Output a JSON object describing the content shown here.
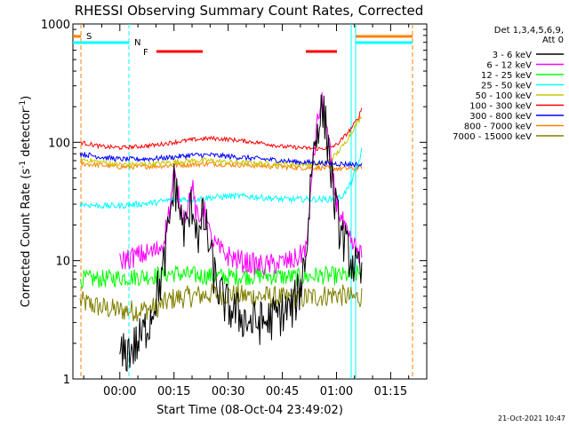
{
  "chart_data": {
    "type": "line",
    "title": "RHESSI Observing Summary Count Rates, Corrected",
    "xlabel": "Start Time (08-Oct-04 23:49:02)",
    "ylabel": "Corrected Count Rate (s",
    "ylabel_sup1": "-1",
    "ylabel_mid": " detector",
    "ylabel_sup2": "-1",
    "ylabel_end": ")",
    "yscale": "log",
    "ylim": [
      1,
      1000
    ],
    "xlim_minutes": [
      -13,
      85
    ],
    "x_ticks": [
      {
        "label": "00:00",
        "minute": 0
      },
      {
        "label": "00:15",
        "minute": 15
      },
      {
        "label": "00:30",
        "minute": 30
      },
      {
        "label": "00:45",
        "minute": 45
      },
      {
        "label": "01:00",
        "minute": 60
      },
      {
        "label": "01:15",
        "minute": 75
      }
    ],
    "y_ticks": [
      {
        "label": "1",
        "value": 1
      },
      {
        "label": "10",
        "value": 10
      },
      {
        "label": "100",
        "value": 100
      },
      {
        "label": "1000",
        "value": 1000
      }
    ],
    "legend_header": [
      "Det 1,3,4,5,6,9,",
      "Att 0"
    ],
    "legend_position": "right",
    "series": [
      {
        "name": "3 - 6 keV",
        "color": "#000000",
        "x": [
          0,
          5,
          8,
          12,
          14,
          15,
          16,
          17,
          18,
          19,
          20,
          21,
          22,
          23,
          24,
          25,
          26,
          27,
          28,
          30,
          33,
          36,
          40,
          44,
          48,
          50,
          52,
          53,
          55,
          56,
          57,
          58,
          59,
          60,
          61,
          62,
          63,
          64,
          65,
          66,
          67
        ],
        "y": [
          1.5,
          2,
          3,
          8,
          25,
          45,
          35,
          22,
          18,
          22,
          30,
          22,
          15,
          24,
          18,
          12,
          8,
          6,
          5,
          4,
          3.5,
          3,
          3,
          3.5,
          4,
          6,
          15,
          60,
          150,
          190,
          140,
          80,
          40,
          25,
          18,
          15,
          12,
          10,
          9,
          8,
          7
        ]
      },
      {
        "name": "6 - 12 keV",
        "color": "#ff00ff",
        "x": [
          0,
          5,
          10,
          12,
          14,
          15,
          16,
          17,
          18,
          19,
          20,
          21,
          22,
          23,
          24,
          25,
          26,
          28,
          30,
          33,
          36,
          40,
          44,
          48,
          50,
          52,
          53,
          55,
          56,
          57,
          58,
          59,
          60,
          61,
          62,
          63,
          64,
          65,
          66,
          67
        ],
        "y": [
          10,
          11,
          12,
          14,
          30,
          55,
          38,
          26,
          24,
          30,
          45,
          26,
          20,
          30,
          22,
          16,
          14,
          12,
          11,
          10,
          9.5,
          9,
          9.5,
          10,
          11,
          14,
          50,
          170,
          215,
          150,
          90,
          50,
          32,
          24,
          20,
          16,
          14,
          13,
          12,
          11
        ]
      },
      {
        "name": "12 - 25 keV",
        "color": "#00ff00",
        "x": [
          -11,
          -5,
          0,
          5,
          10,
          15,
          20,
          25,
          30,
          35,
          40,
          45,
          50,
          55,
          60,
          65,
          67
        ],
        "y": [
          7,
          7,
          7.2,
          7.3,
          7.5,
          7.8,
          7.5,
          7.4,
          7.3,
          7.4,
          7.5,
          7.3,
          7.2,
          7.5,
          7.4,
          7.6,
          8
        ]
      },
      {
        "name": "25 - 50 keV",
        "color": "#00ffff",
        "x": [
          -11,
          -5,
          0,
          5,
          10,
          15,
          20,
          25,
          30,
          35,
          40,
          45,
          50,
          55,
          60,
          62,
          64,
          66,
          67
        ],
        "y": [
          30,
          29,
          29,
          30,
          31,
          33,
          33,
          34,
          35,
          35,
          34,
          33,
          33,
          33,
          33,
          36,
          45,
          65,
          85
        ]
      },
      {
        "name": "50 - 100 keV",
        "color": "#c8c800",
        "x": [
          -11,
          -5,
          0,
          5,
          10,
          15,
          20,
          25,
          30,
          35,
          40,
          45,
          50,
          55,
          58,
          60,
          62,
          64,
          66,
          67
        ],
        "y": [
          72,
          68,
          65,
          65,
          66,
          68,
          70,
          70,
          68,
          67,
          66,
          65,
          65,
          65,
          70,
          80,
          95,
          120,
          150,
          170
        ]
      },
      {
        "name": "100 - 300 keV",
        "color": "#ff0000",
        "x": [
          -11,
          -5,
          0,
          5,
          10,
          15,
          20,
          25,
          30,
          35,
          40,
          45,
          50,
          55,
          58,
          60,
          62,
          64,
          66,
          67
        ],
        "y": [
          100,
          92,
          90,
          92,
          95,
          100,
          105,
          108,
          106,
          102,
          98,
          92,
          90,
          88,
          90,
          95,
          110,
          130,
          160,
          195
        ]
      },
      {
        "name": "300 - 800 keV",
        "color": "#0000ff",
        "x": [
          -11,
          -5,
          0,
          5,
          10,
          15,
          20,
          25,
          30,
          35,
          40,
          45,
          50,
          55,
          60,
          65,
          67
        ],
        "y": [
          80,
          75,
          72,
          72,
          73,
          75,
          78,
          78,
          76,
          74,
          72,
          70,
          68,
          67,
          66,
          65,
          64
        ]
      },
      {
        "name": "800 - 7000 keV",
        "color": "#ff8000",
        "x": [
          -11,
          -5,
          0,
          5,
          10,
          15,
          20,
          25,
          30,
          35,
          40,
          45,
          50,
          55,
          60,
          65,
          67
        ],
        "y": [
          66,
          64,
          62,
          62,
          63,
          64,
          65,
          66,
          65,
          64,
          63,
          62,
          61,
          61,
          60,
          60,
          62
        ]
      },
      {
        "name": "7000 - 15000 keV",
        "color": "#808000",
        "x": [
          -11,
          -5,
          0,
          5,
          10,
          15,
          20,
          25,
          30,
          35,
          40,
          45,
          50,
          55,
          60,
          65,
          67
        ],
        "y": [
          4.5,
          4,
          3.8,
          3.8,
          4,
          4.8,
          5,
          5.2,
          5.2,
          5,
          5,
          4.8,
          4.8,
          5,
          5.2,
          4.8,
          5
        ]
      }
    ],
    "annotations": [
      {
        "label": "S",
        "color": "#ff8000"
      },
      {
        "label": "N",
        "color": "#00ffff"
      },
      {
        "label": "F",
        "color": "#ff0000"
      }
    ],
    "timestamp": "21-Oct-2021 10:47"
  }
}
